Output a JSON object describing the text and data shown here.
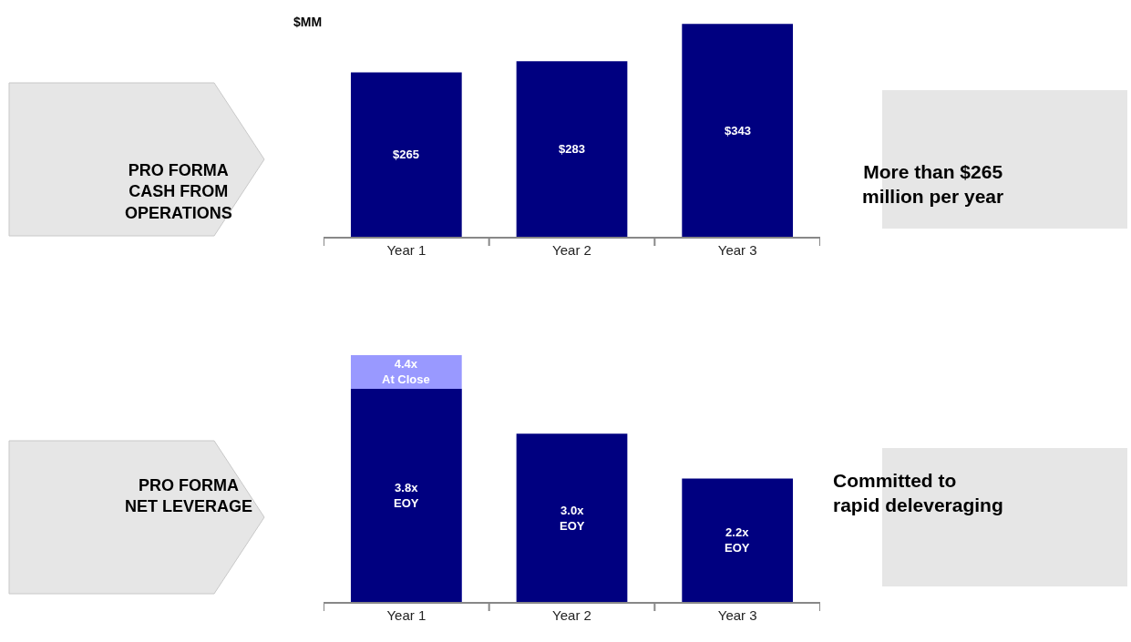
{
  "chart_data": [
    {
      "type": "bar",
      "ylabel": "$MM",
      "categories": [
        "Year 1",
        "Year 2",
        "Year 3"
      ],
      "tick_labels": "x",
      "series": [
        {
          "color": "#000080",
          "values": [
            265,
            283,
            343
          ],
          "value_labels": [
            "$265",
            "$283",
            "$343"
          ]
        }
      ],
      "annotations": [
        "PRO FORMA\nCASH FROM\nOPERATIONS",
        "More than $265\nmillion per year"
      ]
    },
    {
      "type": "bar",
      "categories": [
        "Year 1",
        "Year 2",
        "Year 3"
      ],
      "ylim": [
        0,
        4.4
      ],
      "tick_labels": "x",
      "series": [
        {
          "color": "#9999ff",
          "values": [
            4.4,
            null,
            null
          ],
          "value_labels": [
            "4.4x\nAt Close",
            null,
            null
          ]
        },
        {
          "color": "#000080",
          "values": [
            3.8,
            3.0,
            2.2
          ],
          "value_labels": [
            "3.8x\nEOY",
            "3.0x\nEOY",
            "2.2x\nEOY"
          ]
        }
      ],
      "annotations": [
        "PRO FORMA\nNET LEVERAGE",
        "Committed to\nrapid deleveraging"
      ]
    }
  ]
}
